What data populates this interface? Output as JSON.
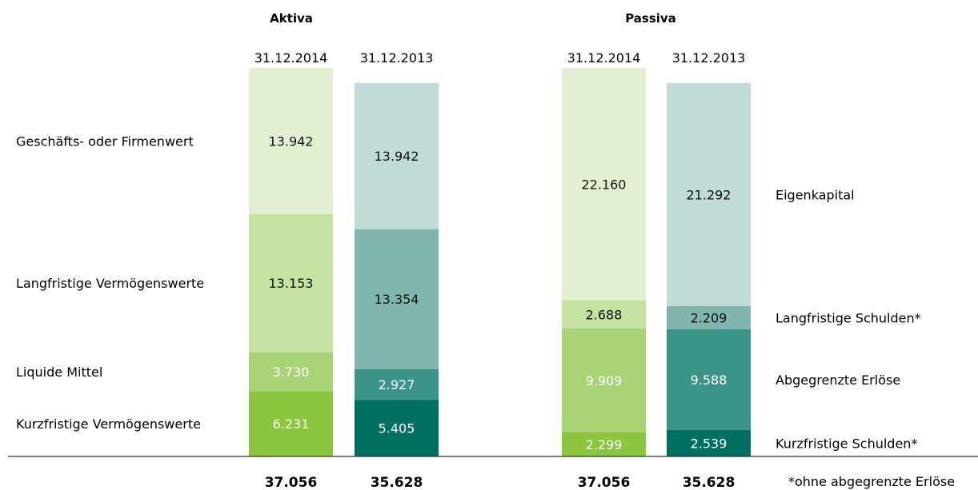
{
  "chart_data": {
    "type": "bar",
    "stacked": true,
    "groups": [
      {
        "title": "Aktiva",
        "columns": [
          {
            "date": "31.12.2014",
            "total": "37.056",
            "segments": [
              {
                "label": "Kurzfristige Vermögenswerte",
                "value": 6231,
                "value_label": "6.231",
                "color": "#8cc63f",
                "text_color": "#ffffff"
              },
              {
                "label": "Liquide Mittel",
                "value": 3730,
                "value_label": "3.730",
                "color": "#a9d475",
                "text_color": "#ffffff"
              },
              {
                "label": "Langfristige Vermögenswerte",
                "value": 13153,
                "value_label": "13.153",
                "color": "#c5e2a0",
                "text_color": "#111111"
              },
              {
                "label": "Geschäfts- oder Firmenwert",
                "value": 13942,
                "value_label": "13.942",
                "color": "#e2f0d1",
                "text_color": "#111111"
              }
            ]
          },
          {
            "date": "31.12.2013",
            "total": "35.628",
            "segments": [
              {
                "label": "Kurzfristige Vermögenswerte",
                "value": 5405,
                "value_label": "5.405",
                "color": "#006e61",
                "text_color": "#ffffff"
              },
              {
                "label": "Liquide Mittel",
                "value": 2927,
                "value_label": "2.927",
                "color": "#3b9488",
                "text_color": "#ffffff"
              },
              {
                "label": "Langfristige Vermögenswerte",
                "value": 13354,
                "value_label": "13.354",
                "color": "#80b6ae",
                "text_color": "#111111"
              },
              {
                "label": "Geschäfts- oder Firmenwert",
                "value": 13942,
                "value_label": "13.942",
                "color": "#c1dcd8",
                "text_color": "#111111"
              }
            ]
          }
        ],
        "row_labels": [
          "Geschäfts- oder Firmenwert",
          "Langfristige Vermögenswerte",
          "Liquide Mittel",
          "Kurzfristige Vermögenswerte"
        ]
      },
      {
        "title": "Passiva",
        "columns": [
          {
            "date": "31.12.2014",
            "total": "37.056",
            "segments": [
              {
                "label": "Kurzfristige Schulden*",
                "value": 2299,
                "value_label": "2.299",
                "color": "#8cc63f",
                "text_color": "#ffffff"
              },
              {
                "label": "Abgegrenzte Erlöse",
                "value": 9909,
                "value_label": "9.909",
                "color": "#a9d475",
                "text_color": "#ffffff"
              },
              {
                "label": "Langfristige Schulden*",
                "value": 2688,
                "value_label": "2.688",
                "color": "#c5e2a0",
                "text_color": "#111111"
              },
              {
                "label": "Eigenkapital",
                "value": 22160,
                "value_label": "22.160",
                "color": "#e2f0d1",
                "text_color": "#111111"
              }
            ]
          },
          {
            "date": "31.12.2013",
            "total": "35.628",
            "segments": [
              {
                "label": "Kurzfristige Schulden*",
                "value": 2539,
                "value_label": "2.539",
                "color": "#006e61",
                "text_color": "#ffffff"
              },
              {
                "label": "Abgegrenzte Erlöse",
                "value": 9588,
                "value_label": "9.588",
                "color": "#3b9488",
                "text_color": "#ffffff"
              },
              {
                "label": "Langfristige Schulden*",
                "value": 2209,
                "value_label": "2.209",
                "color": "#80b6ae",
                "text_color": "#111111"
              },
              {
                "label": "Eigenkapital",
                "value": 21292,
                "value_label": "21.292",
                "color": "#c1dcd8",
                "text_color": "#111111"
              }
            ]
          }
        ],
        "row_labels": [
          "Eigenkapital",
          "Langfristige Schulden*",
          "Abgegrenzte Erlöse",
          "Kurzfristige Schulden*"
        ]
      }
    ],
    "footnote": "*ohne abgegrenzte Erlöse"
  }
}
